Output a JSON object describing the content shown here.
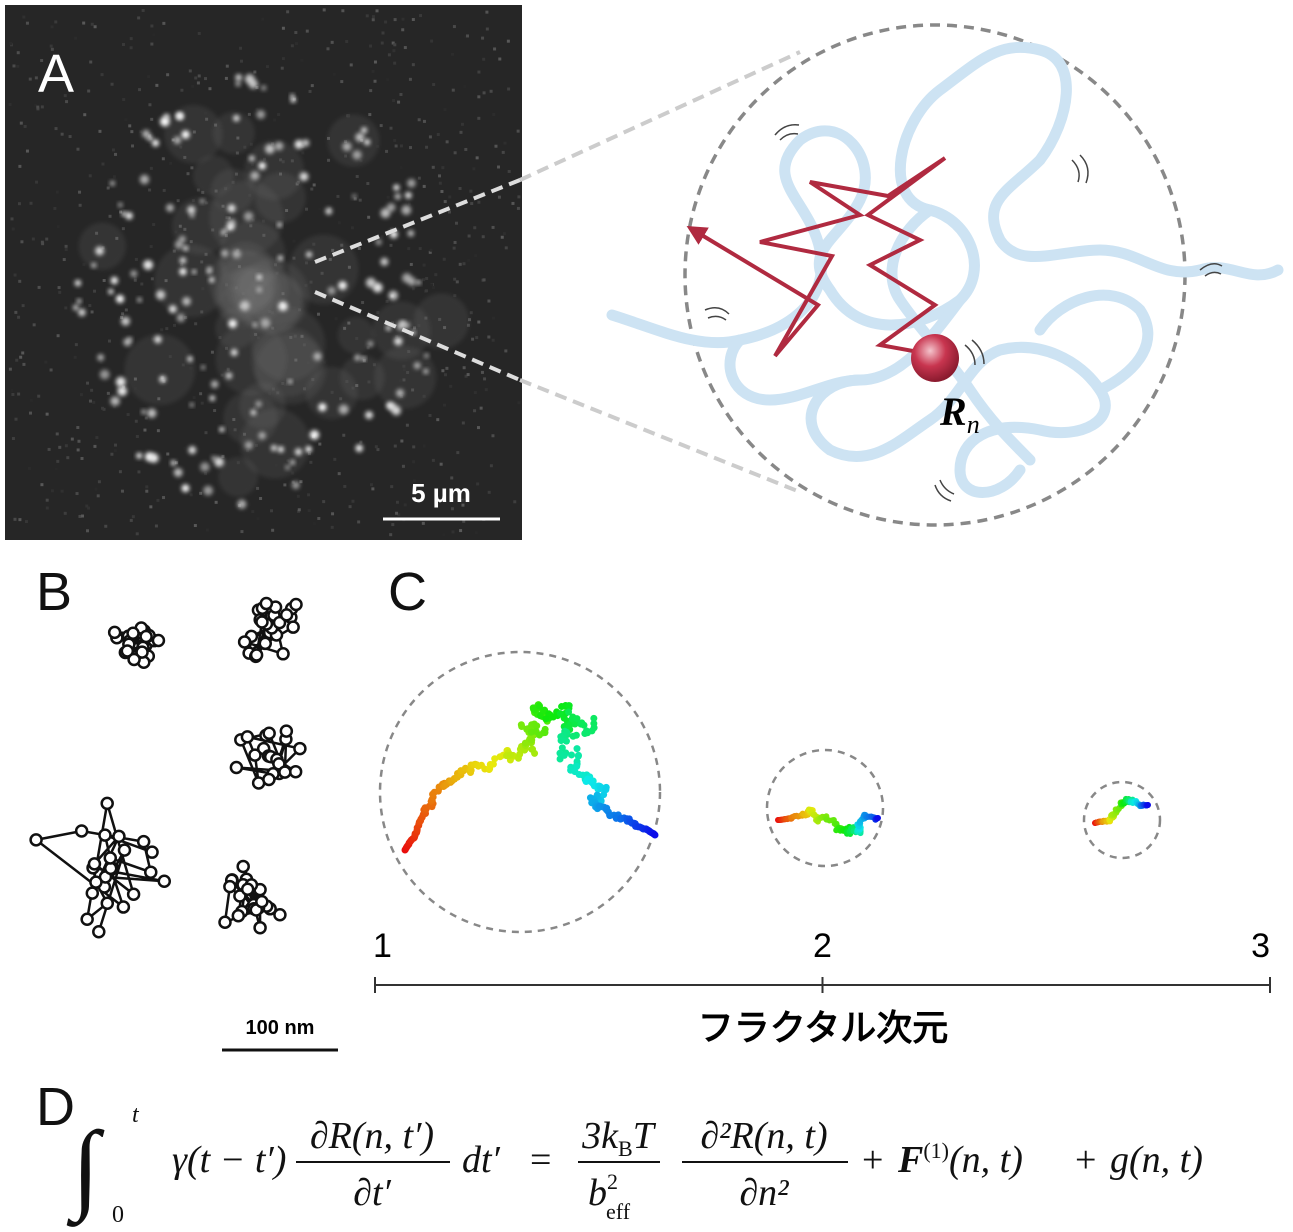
{
  "panel_a": {
    "label": "A",
    "scale_bar": "5 µm"
  },
  "schematic": {
    "monomer_label": {
      "symbol": "R",
      "subscript": "n"
    }
  },
  "panel_b": {
    "label": "B",
    "scale_bar": "100 nm"
  },
  "panel_c": {
    "label": "C",
    "axis": {
      "range": [
        1,
        3
      ],
      "ticks": [
        1,
        2,
        3
      ],
      "label": "フラクタル次元"
    }
  },
  "panel_d": {
    "label": "D",
    "equation": {
      "integral": "∫",
      "int_upper": "t",
      "int_lower": "0",
      "kernel": "γ(t − t′)",
      "frac1_num": "∂R(n, t′)",
      "frac1_den": "∂t′",
      "differential": "dt′",
      "equals": "=",
      "frac2_num_a": "3k",
      "frac2_num_sub": "B",
      "frac2_num_b": "T",
      "frac2_den": "b",
      "frac2_den_sup": "2",
      "frac2_den_sub": "eff",
      "frac3_num": "∂²R(n, t)",
      "frac3_den": "∂n²",
      "plus1": "+",
      "force": "F",
      "force_sup": "(1)",
      "force_args": "(n, t)",
      "plus2": "+",
      "noise": "g(n, t)"
    }
  }
}
